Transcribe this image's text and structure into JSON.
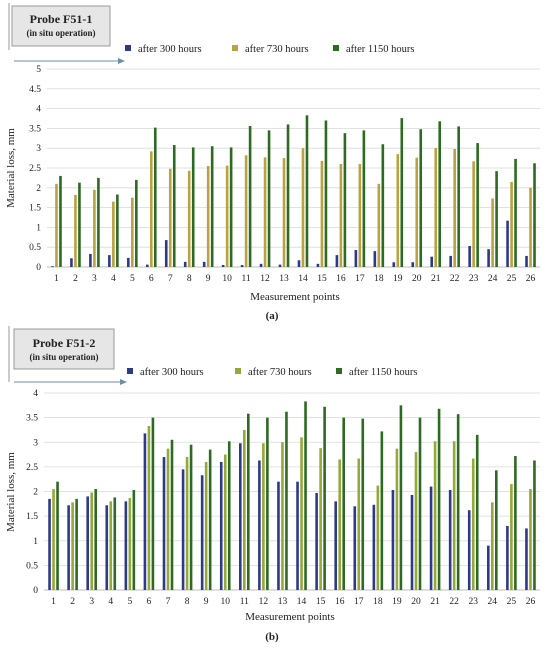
{
  "colors": {
    "after_300": "#2e3a87",
    "after_730": "#b8a241",
    "after_1150": "#2d6a22",
    "after_730_b": "#95a83a"
  },
  "chart_data": [
    {
      "type": "bar",
      "panel_label": "(a)",
      "probe_title": "Probe F51-1",
      "probe_subtitle": "(in situ operation)",
      "xlabel": "Measurement points",
      "ylabel": "Material loss, mm",
      "ylim": [
        0,
        5
      ],
      "yticks": [
        "0",
        "0.5",
        "1",
        "1.5",
        "2",
        "2.5",
        "3",
        "3.5",
        "4",
        "4.5",
        "5"
      ],
      "grid": true,
      "legend_position": "top",
      "categories": [
        "1",
        "2",
        "3",
        "4",
        "5",
        "6",
        "7",
        "8",
        "9",
        "10",
        "11",
        "12",
        "13",
        "14",
        "15",
        "16",
        "17",
        "18",
        "19",
        "20",
        "21",
        "22",
        "23",
        "24",
        "25",
        "26"
      ],
      "series": [
        {
          "name": "after 300 hours",
          "color": "#2e3a87",
          "values": [
            0.02,
            0.22,
            0.33,
            0.3,
            0.23,
            0.06,
            0.68,
            0.13,
            0.13,
            0.05,
            0.05,
            0.08,
            0.06,
            0.17,
            0.08,
            0.3,
            0.43,
            0.4,
            0.12,
            0.12,
            0.26,
            0.28,
            0.53,
            0.45,
            1.17,
            0.28
          ]
        },
        {
          "name": "after 730 hours",
          "color": "#b8a241",
          "values": [
            2.1,
            1.82,
            1.95,
            1.65,
            1.75,
            2.92,
            2.48,
            2.43,
            2.55,
            2.56,
            2.82,
            2.77,
            2.75,
            3.0,
            2.68,
            2.6,
            2.6,
            2.1,
            2.85,
            2.76,
            3.0,
            2.98,
            2.67,
            1.73,
            2.15,
            2.0
          ]
        },
        {
          "name": "after 1150 hours",
          "color": "#2d6a22",
          "values": [
            2.3,
            2.13,
            2.25,
            1.83,
            2.2,
            3.52,
            3.08,
            3.02,
            3.05,
            3.02,
            3.56,
            3.45,
            3.6,
            3.83,
            3.7,
            3.38,
            3.45,
            3.1,
            3.76,
            3.48,
            3.68,
            3.55,
            3.13,
            2.42,
            2.73,
            2.62
          ]
        }
      ]
    },
    {
      "type": "bar",
      "panel_label": "(b)",
      "probe_title": "Probe F51-2",
      "probe_subtitle": "(in situ operation)",
      "xlabel": "Measurement points",
      "ylabel": "Material loss, mm",
      "ylim": [
        0,
        4
      ],
      "yticks": [
        "0",
        "0.5",
        "1",
        "1.5",
        "2",
        "2.5",
        "3",
        "3.5",
        "4"
      ],
      "grid": true,
      "legend_position": "top",
      "categories": [
        "1",
        "2",
        "3",
        "4",
        "5",
        "6",
        "7",
        "8",
        "9",
        "10",
        "11",
        "12",
        "13",
        "14",
        "15",
        "16",
        "17",
        "18",
        "19",
        "20",
        "21",
        "22",
        "23",
        "24",
        "25",
        "26"
      ],
      "series": [
        {
          "name": "after 300 hours",
          "color": "#2e3a87",
          "values": [
            1.85,
            1.72,
            1.9,
            1.72,
            1.8,
            3.18,
            2.7,
            2.45,
            2.33,
            2.6,
            2.98,
            2.63,
            2.2,
            2.2,
            1.97,
            1.8,
            1.7,
            1.73,
            2.03,
            1.93,
            2.1,
            2.03,
            1.62,
            0.9,
            1.3,
            1.25
          ]
        },
        {
          "name": "after 730 hours",
          "color": "#95a83a",
          "values": [
            2.05,
            1.78,
            1.98,
            1.8,
            1.87,
            3.33,
            2.87,
            2.7,
            2.6,
            2.75,
            3.25,
            2.98,
            3.0,
            3.1,
            2.88,
            2.65,
            2.67,
            2.12,
            2.87,
            2.8,
            3.02,
            3.02,
            2.67,
            1.78,
            2.15,
            2.05
          ]
        },
        {
          "name": "after 1150 hours",
          "color": "#2d6a22",
          "values": [
            2.2,
            1.85,
            2.05,
            1.88,
            2.03,
            3.5,
            3.05,
            2.95,
            2.85,
            3.02,
            3.58,
            3.5,
            3.62,
            3.83,
            3.72,
            3.5,
            3.48,
            3.22,
            3.75,
            3.5,
            3.68,
            3.57,
            3.15,
            2.43,
            2.72,
            2.63
          ]
        }
      ]
    }
  ]
}
